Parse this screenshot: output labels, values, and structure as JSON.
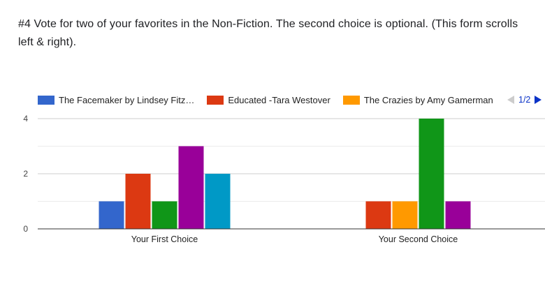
{
  "question": {
    "text": "#4 Vote for two of your favorites in the Non-Fiction. The second choice is optional.    (This form scrolls left & right)."
  },
  "legend": {
    "items": [
      {
        "label": "The Facemaker by Lindsey Fitz…",
        "color": "#3366cc"
      },
      {
        "label": "Educated -Tara Westover",
        "color": "#dc3912"
      },
      {
        "label": "The Crazies by Amy Gamerman",
        "color": "#ff9900"
      }
    ],
    "page": "1/2"
  },
  "chart_data": {
    "type": "bar",
    "categories": [
      "Your First Choice",
      "Your Second Choice"
    ],
    "ylim": [
      0,
      4
    ],
    "yticks": [
      0,
      2,
      4
    ],
    "grid": true,
    "legend_position": "top",
    "series": [
      {
        "name": "The Facemaker by Lindsey Fitz…",
        "color": "#3366cc",
        "values": [
          1,
          0
        ]
      },
      {
        "name": "Educated -Tara Westover",
        "color": "#dc3912",
        "values": [
          2,
          1
        ]
      },
      {
        "name": "The Crazies by Amy Gamerman",
        "color": "#ff9900",
        "values": [
          0,
          1
        ]
      },
      {
        "color": "#109618",
        "values": [
          1,
          4
        ]
      },
      {
        "color": "#990099",
        "values": [
          3,
          1
        ]
      },
      {
        "color": "#0099c6",
        "values": [
          2,
          0
        ]
      }
    ]
  }
}
